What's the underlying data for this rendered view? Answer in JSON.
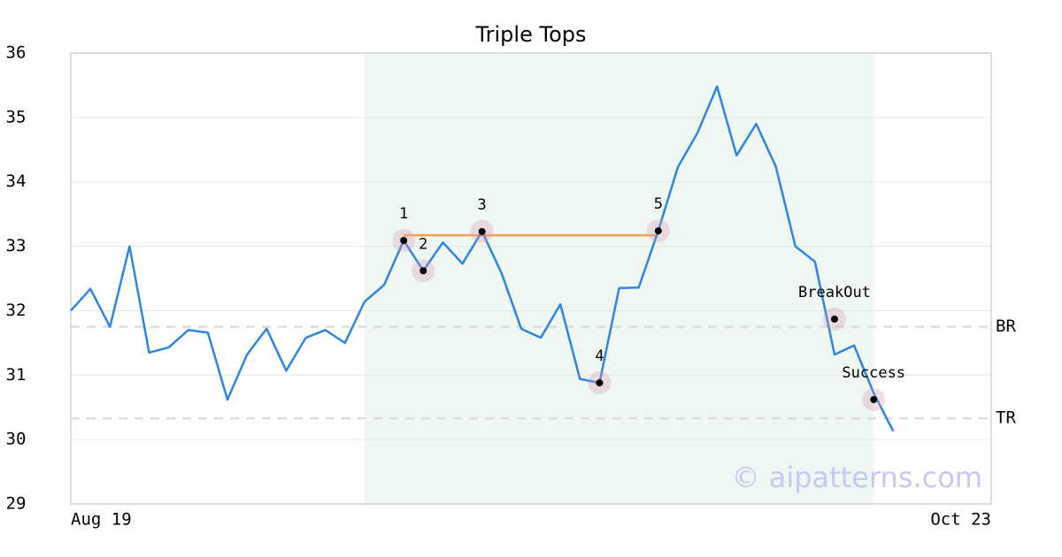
{
  "chart_data": {
    "type": "line",
    "title": "Triple Tops",
    "categories": [
      "Aug 19",
      null,
      null,
      null,
      null,
      null,
      null,
      null,
      null,
      null,
      null,
      null,
      null,
      null,
      null,
      null,
      null,
      null,
      null,
      null,
      null,
      null,
      null,
      null,
      null,
      null,
      null,
      null,
      null,
      null,
      null,
      null,
      null,
      null,
      null,
      null,
      null,
      null,
      null,
      null,
      null,
      null,
      null,
      null,
      null,
      null,
      null,
      "Oct 23"
    ],
    "values": [
      32.0,
      32.34,
      31.75,
      33.0,
      31.35,
      31.43,
      31.7,
      31.66,
      30.62,
      31.32,
      31.72,
      31.07,
      31.58,
      31.7,
      31.5,
      32.14,
      32.4,
      33.09,
      32.62,
      33.06,
      32.73,
      33.23,
      32.58,
      31.72,
      31.58,
      32.1,
      30.94,
      30.88,
      32.35,
      32.36,
      33.24,
      34.23,
      34.76,
      35.48,
      34.41,
      34.9,
      34.24,
      33.0,
      32.76,
      31.32,
      31.46,
      30.72,
      30.13,
      null,
      null,
      null,
      null,
      null
    ],
    "color": "#2e86de",
    "ylim": [
      29,
      36
    ],
    "yticks": [
      29,
      30,
      31,
      32,
      33,
      34,
      35,
      36
    ],
    "grid": true,
    "highlight": {
      "x": [
        15,
        41
      ],
      "color": "#eef7f2"
    },
    "resistance": {
      "x": [
        17,
        30
      ],
      "y": 33.17,
      "color": "#f5a05a"
    },
    "levels": [
      {
        "label": "BR",
        "y": 31.75
      },
      {
        "label": "TR",
        "y": 30.33
      }
    ],
    "annotations": [
      {
        "label": "1",
        "x": 17,
        "y": 33.09
      },
      {
        "label": "2",
        "x": 18,
        "y": 32.62
      },
      {
        "label": "3",
        "x": 21,
        "y": 33.23
      },
      {
        "label": "4",
        "x": 27,
        "y": 30.88
      },
      {
        "label": "5",
        "x": 30,
        "y": 33.24
      },
      {
        "label": "BreakOut",
        "x": 39,
        "y": 31.87
      },
      {
        "label": "Success",
        "x": 41,
        "y": 30.62
      }
    ],
    "watermark": "© aipatterns.com"
  }
}
